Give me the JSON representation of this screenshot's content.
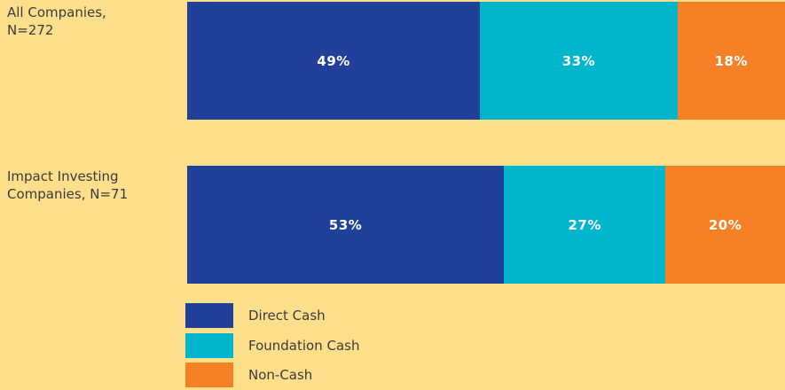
{
  "chart_data": {
    "type": "stacked-bar-horizontal",
    "categories": [
      "All Companies, N=272",
      "Impact Investing Companies, N=71"
    ],
    "xlim": [
      0,
      100
    ],
    "series": [
      {
        "name": "Direct Cash",
        "color": "#21409a",
        "values": [
          49,
          53
        ],
        "value_labels": [
          "49%",
          "53%"
        ]
      },
      {
        "name": "Foundation Cash",
        "color": "#00b5cc",
        "values": [
          33,
          27
        ],
        "value_labels": [
          "33%",
          "27%"
        ]
      },
      {
        "name": "Non-Cash",
        "color": "#f58025",
        "values": [
          18,
          20
        ],
        "value_labels": [
          "18%",
          "20%"
        ]
      }
    ]
  }
}
